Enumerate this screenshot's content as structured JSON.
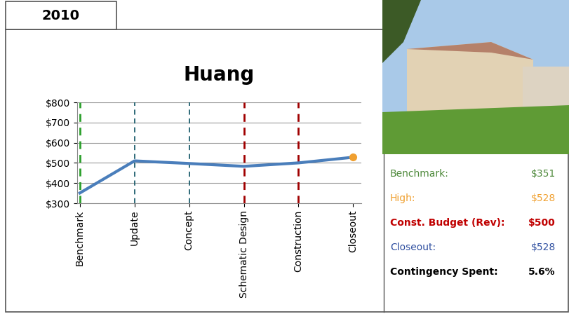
{
  "tab": "2010",
  "chart_data": {
    "type": "line",
    "title": "Huang",
    "categories": [
      "Benchmark",
      "Update",
      "Concept",
      "Schematic Design",
      "Construction",
      "Closeout"
    ],
    "values": [
      351,
      510,
      497,
      483,
      500,
      528
    ],
    "color": "#4a7ebb",
    "ylim": [
      300,
      800
    ],
    "yticks": [
      {
        "value": 300,
        "label": "$300"
      },
      {
        "value": 400,
        "label": "$400"
      },
      {
        "value": 500,
        "label": "$500"
      },
      {
        "value": 600,
        "label": "$600"
      },
      {
        "value": 700,
        "label": "$700"
      },
      {
        "value": 800,
        "label": "$800"
      }
    ],
    "grid": true
  },
  "summary": {
    "rows": [
      {
        "label": "Benchmark:",
        "value": "$351"
      },
      {
        "label": "High:",
        "value": "$528"
      },
      {
        "label": "Const. Budget (Rev):",
        "value": "$500"
      },
      {
        "label": "Closeout:",
        "value": "$528"
      },
      {
        "label": "Contingency Spent:",
        "value": "5.6%"
      }
    ]
  }
}
